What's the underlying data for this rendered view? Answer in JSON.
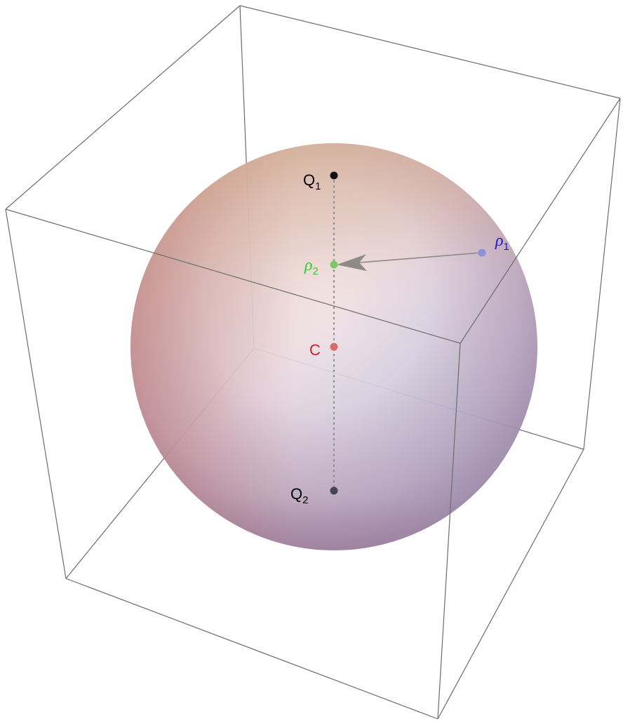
{
  "points": {
    "q1": {
      "name": "Q",
      "sub": "1",
      "color": "#000000"
    },
    "rho2": {
      "name": "ρ",
      "sub": "2",
      "color": "#33cc33"
    },
    "rho1": {
      "name": "ρ",
      "sub": "1",
      "color": "#1a1acc"
    },
    "c": {
      "name": "C",
      "color": "#cc1f2f"
    },
    "q2": {
      "name": "Q",
      "sub": "2",
      "color": "#000000"
    }
  },
  "colors": {
    "box_edge": "#6d6d6d",
    "arrow": "#8f8a84",
    "dotted_axis": "#888888",
    "marker_q1": "#111111",
    "marker_rho2": "#7fc86a",
    "marker_rho1": "#8a92e0",
    "marker_c": "#d86a6a",
    "marker_q2": "#44445a"
  }
}
